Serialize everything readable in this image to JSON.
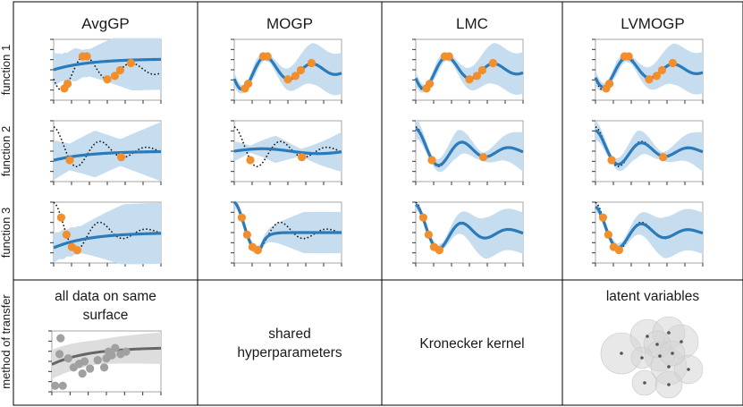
{
  "columns": [
    {
      "title": "AvgGP",
      "method": [
        "all data on same",
        "surface"
      ]
    },
    {
      "title": "MOGP",
      "method": [
        "shared",
        "hyperparameters"
      ]
    },
    {
      "title": "LMC",
      "method": [
        "Kronecker kernel"
      ]
    },
    {
      "title": "LVMOGP",
      "method": [
        "latent variables"
      ]
    }
  ],
  "rows": [
    "function 1",
    "function 2",
    "function 3"
  ],
  "method_row_label": "method of transfer",
  "colors": {
    "mean": "#2b7bba",
    "band": "#c6dcef",
    "observation": "#f28e2b",
    "truth": "#1a1a1a",
    "gray_mean": "#666666",
    "gray_band": "#dddddd",
    "gray_point": "#a0a0a0",
    "border": "#000000",
    "axis": "#a6a6a6"
  }
}
